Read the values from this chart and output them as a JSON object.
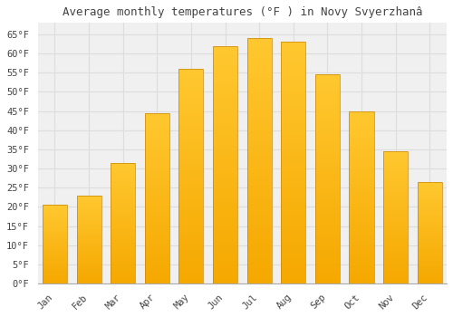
{
  "title": "Average monthly temperatures (°F ) in Novy Svyerzhanâ",
  "months": [
    "Jan",
    "Feb",
    "Mar",
    "Apr",
    "May",
    "Jun",
    "Jul",
    "Aug",
    "Sep",
    "Oct",
    "Nov",
    "Dec"
  ],
  "values": [
    20.5,
    23.0,
    31.5,
    44.5,
    56.0,
    62.0,
    64.0,
    63.0,
    54.5,
    45.0,
    34.5,
    26.5
  ],
  "bar_color_top": "#FFC025",
  "bar_color_bottom": "#F5A800",
  "bar_edge_color": "#C8860A",
  "background_color": "#FFFFFF",
  "plot_bg_color": "#F0F0F0",
  "grid_color": "#DDDDDD",
  "text_color": "#444444",
  "ylim": [
    0,
    68
  ],
  "yticks": [
    0,
    5,
    10,
    15,
    20,
    25,
    30,
    35,
    40,
    45,
    50,
    55,
    60,
    65
  ],
  "title_fontsize": 9,
  "tick_fontsize": 7.5,
  "font_family": "monospace"
}
